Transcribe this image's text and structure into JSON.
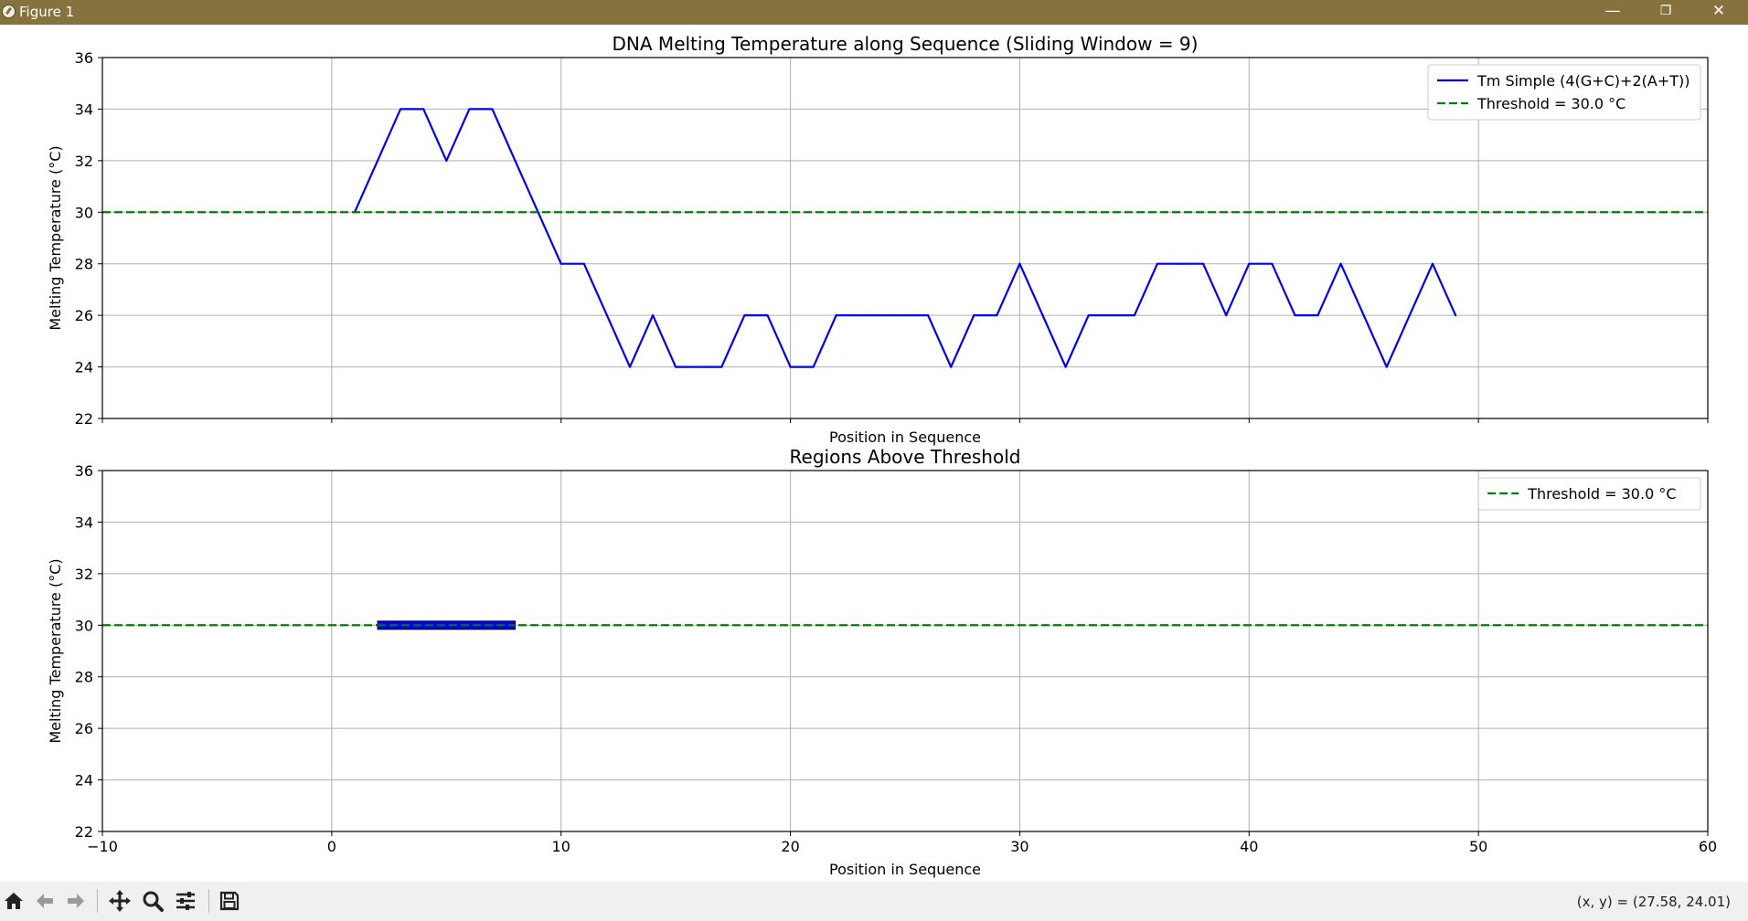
{
  "window": {
    "title": "Figure 1"
  },
  "titlebar": {
    "minimize": "—",
    "restore": "❐",
    "close": "✕"
  },
  "toolbar": {
    "buttons": [
      "home-icon",
      "back-icon",
      "forward-icon",
      "pan-icon",
      "zoom-icon",
      "configure-subplots-icon",
      "save-icon"
    ],
    "coords_text": "(x, y) = (27.58, 24.01)"
  },
  "chart_data": [
    {
      "type": "line",
      "title": "DNA Melting Temperature along Sequence (Sliding Window = 9)",
      "xlabel": "Position in Sequence",
      "ylabel": "Melting Temperature (°C)",
      "xlim": [
        -10,
        60
      ],
      "ylim": [
        22,
        36
      ],
      "xticks": [
        "−10",
        "0",
        "10",
        "20",
        "30",
        "40",
        "50",
        "60"
      ],
      "yticks": [
        "22",
        "24",
        "26",
        "28",
        "30",
        "32",
        "34",
        "36"
      ],
      "grid": true,
      "legend_position": "top-right",
      "series": [
        {
          "name": "Tm Simple (4(G+C)+2(A+T))",
          "color": "#0000ee",
          "style": "solid",
          "x": [
            1,
            2,
            3,
            4,
            5,
            6,
            7,
            8,
            9,
            10,
            11,
            12,
            13,
            14,
            15,
            16,
            17,
            18,
            19,
            20,
            21,
            22,
            23,
            24,
            25,
            26,
            27,
            28,
            29,
            30,
            31,
            32,
            33,
            34,
            35,
            36,
            37,
            38,
            39,
            40,
            41,
            42,
            43,
            44,
            45,
            46,
            47,
            48,
            49
          ],
          "y": [
            30,
            32,
            34,
            34,
            32,
            34,
            34,
            32,
            30,
            28,
            28,
            26,
            24,
            26,
            24,
            24,
            24,
            26,
            26,
            24,
            24,
            26,
            26,
            26,
            26,
            26,
            24,
            26,
            26,
            28,
            26,
            24,
            26,
            26,
            26,
            28,
            28,
            28,
            26,
            28,
            28,
            26,
            26,
            28,
            26,
            24,
            26,
            28,
            26
          ]
        },
        {
          "name": "Threshold = 30.0 °C",
          "color": "#008000",
          "style": "dashed",
          "y_constant": 30.0
        }
      ]
    },
    {
      "type": "line",
      "title": "Regions Above Threshold",
      "xlabel": "Position in Sequence",
      "ylabel": "Melting Temperature (°C)",
      "xlim": [
        -10,
        60
      ],
      "ylim": [
        22,
        36
      ],
      "xticks": [
        "−10",
        "0",
        "10",
        "20",
        "30",
        "40",
        "50",
        "60"
      ],
      "yticks": [
        "22",
        "24",
        "26",
        "28",
        "30",
        "32",
        "34",
        "36"
      ],
      "grid": true,
      "legend_position": "top-right",
      "series": [
        {
          "name": "Threshold = 30.0 °C",
          "color": "#008000",
          "style": "dashed",
          "y_constant": 30.0
        }
      ],
      "regions": [
        {
          "x_start": 2,
          "x_end": 8,
          "y": 30,
          "color": "#0000ee"
        }
      ]
    }
  ]
}
